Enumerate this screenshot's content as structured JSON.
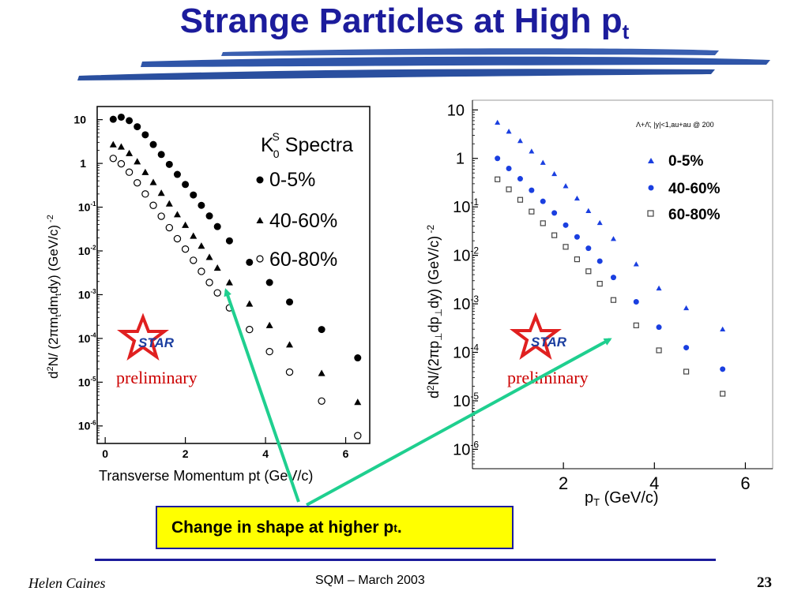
{
  "slide": {
    "title_main": "Strange Particles at High p",
    "title_sub": "t",
    "callout_text": "Change in shape at higher  p",
    "callout_sub": "t",
    "callout_tail": ".",
    "footer_author": "Helen Caines",
    "footer_center": "SQM  – March 2003",
    "footer_page": "23"
  },
  "colors": {
    "title": "#1c1c9c",
    "accent_blue": "#1c1c9c",
    "arrow": "#1fcf8f",
    "callout_bg": "#ffff00",
    "preliminary": "#cc0000",
    "star": "#e02020"
  },
  "chart_data": [
    {
      "type": "scatter",
      "title": "K0S Spectra",
      "xlabel": "Transverse Momentum pt (GeV/c)",
      "ylabel": "d2N/(2πmtdmtdy) (GeV/c)-2",
      "y_scale": "log",
      "xlim": [
        -0.2,
        6.6
      ],
      "ylim_exponent": [
        -6.4,
        1.3
      ],
      "x_ticks": [
        "0",
        "2",
        "4",
        "6"
      ],
      "y_ticks": [
        {
          "base": "10",
          "exp": ""
        },
        {
          "base": "1",
          "exp": ""
        },
        {
          "base": "10",
          "exp": "-1"
        },
        {
          "base": "10",
          "exp": "-2"
        },
        {
          "base": "10",
          "exp": "-3"
        },
        {
          "base": "10",
          "exp": "-4"
        },
        {
          "base": "10",
          "exp": "-5"
        },
        {
          "base": "10",
          "exp": "-6"
        }
      ],
      "legend_title": "K",
      "legend_title_sub": "0",
      "legend_title_sup": "S",
      "legend_title_rest": " Spectra",
      "preliminary_label": "preliminary",
      "logo_text": "STAR",
      "series": [
        {
          "name": "0-5%",
          "marker": "filled-circle",
          "x": [
            0.2,
            0.4,
            0.6,
            0.8,
            1.0,
            1.2,
            1.4,
            1.6,
            1.8,
            2.0,
            2.2,
            2.4,
            2.6,
            2.8,
            3.1,
            3.6,
            4.1,
            4.6,
            5.4,
            6.3
          ],
          "y": [
            10.2,
            11.4,
            9.5,
            6.9,
            4.5,
            2.7,
            1.6,
            0.95,
            0.56,
            0.33,
            0.19,
            0.11,
            0.063,
            0.036,
            0.017,
            0.0055,
            0.0019,
            0.00068,
            0.00016,
            3.6e-05
          ]
        },
        {
          "name": "40-60%",
          "marker": "filled-triangle",
          "x": [
            0.2,
            0.4,
            0.6,
            0.8,
            1.0,
            1.2,
            1.4,
            1.6,
            1.8,
            2.0,
            2.2,
            2.4,
            2.6,
            2.8,
            3.1,
            3.6,
            4.1,
            4.6,
            5.4,
            6.3
          ],
          "y": [
            2.7,
            2.4,
            1.7,
            1.1,
            0.63,
            0.37,
            0.21,
            0.12,
            0.068,
            0.039,
            0.022,
            0.013,
            0.0072,
            0.0041,
            0.0019,
            0.00062,
            0.0002,
            7.2e-05,
            1.6e-05,
            3.5e-06
          ]
        },
        {
          "name": "60-80%",
          "marker": "open-circle",
          "x": [
            0.2,
            0.4,
            0.6,
            0.8,
            1.0,
            1.2,
            1.4,
            1.6,
            1.8,
            2.0,
            2.2,
            2.4,
            2.6,
            2.8,
            3.1,
            3.6,
            4.1,
            4.6,
            5.4,
            6.3
          ],
          "y": [
            1.3,
            0.98,
            0.63,
            0.36,
            0.2,
            0.11,
            0.062,
            0.034,
            0.019,
            0.011,
            0.0061,
            0.0034,
            0.0019,
            0.0011,
            0.0005,
            0.00016,
            5e-05,
            1.7e-05,
            3.7e-06,
            6e-07
          ]
        }
      ]
    },
    {
      "type": "scatter",
      "title": "Λ+Λ̄, |y|<1,au+au @ 200",
      "xlabel": "pT (GeV/c)",
      "ylabel": "d2N/(2πp⊥dp⊥dy) (GeV/c)-2",
      "y_scale": "log",
      "xlim": [
        0.0,
        6.6
      ],
      "ylim_exponent": [
        -6.4,
        1.2
      ],
      "x_ticks": [
        "2",
        "4",
        "6"
      ],
      "y_ticks": [
        {
          "base": "10",
          "exp": ""
        },
        {
          "base": "1",
          "exp": ""
        },
        {
          "base": "10",
          "exp": "-1"
        },
        {
          "base": "10",
          "exp": "-2"
        },
        {
          "base": "10",
          "exp": "-3"
        },
        {
          "base": "10",
          "exp": "-4"
        },
        {
          "base": "10",
          "exp": "-5"
        },
        {
          "base": "10",
          "exp": "-6"
        }
      ],
      "preliminary_label": "preliminary",
      "logo_text": "STAR",
      "series": [
        {
          "name": "0-5%",
          "marker": "filled-triangle",
          "x": [
            0.55,
            0.8,
            1.05,
            1.3,
            1.55,
            1.8,
            2.05,
            2.3,
            2.55,
            2.8,
            3.1,
            3.6,
            4.1,
            4.7,
            5.5
          ],
          "y": [
            5.5,
            3.6,
            2.3,
            1.4,
            0.82,
            0.48,
            0.27,
            0.15,
            0.083,
            0.047,
            0.022,
            0.0066,
            0.0021,
            0.00082,
            0.0003
          ],
          "color": "#1a3fe0"
        },
        {
          "name": "40-60%",
          "marker": "filled-circle",
          "x": [
            0.55,
            0.8,
            1.05,
            1.3,
            1.55,
            1.8,
            2.05,
            2.3,
            2.55,
            2.8,
            3.1,
            3.6,
            4.1,
            4.7,
            5.5
          ],
          "y": [
            1.0,
            0.62,
            0.38,
            0.22,
            0.13,
            0.075,
            0.042,
            0.024,
            0.014,
            0.0076,
            0.0035,
            0.0011,
            0.00033,
            0.000125,
            4.5e-05
          ],
          "color": "#1a3fe0"
        },
        {
          "name": "60-80%",
          "marker": "open-square",
          "x": [
            0.55,
            0.8,
            1.05,
            1.3,
            1.55,
            1.8,
            2.05,
            2.3,
            2.55,
            2.8,
            3.1,
            3.6,
            4.1,
            4.7,
            5.5
          ],
          "y": [
            0.37,
            0.23,
            0.14,
            0.08,
            0.046,
            0.026,
            0.015,
            0.0083,
            0.0047,
            0.0026,
            0.0012,
            0.00036,
            0.00011,
            4e-05,
            1.4e-05
          ],
          "color": "#444444"
        }
      ]
    }
  ]
}
